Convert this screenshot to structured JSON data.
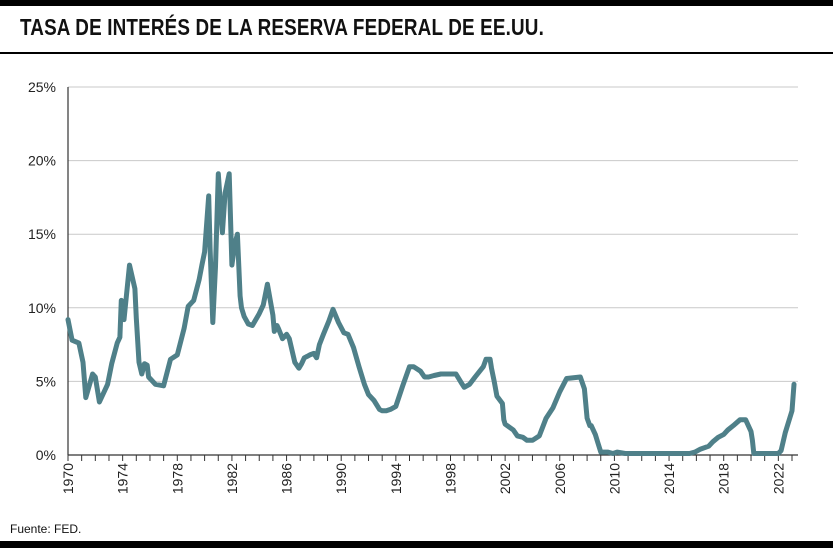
{
  "header": {
    "title": "TASA DE INTERÉS DE LA RESERVA FEDERAL DE EE.UU."
  },
  "footer": {
    "source": "Fuente: FED."
  },
  "chart_data": {
    "type": "line",
    "title": "TASA DE INTERÉS DE LA RESERVA FEDERAL DE EE.UU.",
    "xlabel": "",
    "ylabel": "",
    "xlim": [
      1970,
      2023.7
    ],
    "ylim": [
      0,
      25
    ],
    "y_ticks": [
      "0%",
      "5%",
      "10%",
      "15%",
      "20%",
      "25%"
    ],
    "y_tick_values": [
      0,
      5,
      10,
      15,
      20,
      25
    ],
    "x_ticks": [
      "1970",
      "1974",
      "1978",
      "1982",
      "1986",
      "1990",
      "1994",
      "1998",
      "2002",
      "2006",
      "2010",
      "2014",
      "2018",
      "2022"
    ],
    "x_tick_values": [
      1970,
      1974,
      1978,
      1982,
      1986,
      1990,
      1994,
      1998,
      2002,
      2006,
      2010,
      2014,
      2018,
      2022
    ],
    "grid": "horizontal",
    "line_color": "#4f8089",
    "series": [
      {
        "x": [
          1970.0,
          1970.3,
          1970.8,
          1971.1,
          1971.3,
          1971.8,
          1972.0,
          1972.3,
          1972.9,
          1973.2,
          1973.6,
          1973.8,
          1973.9,
          1974.1,
          1974.5,
          1974.9,
          1975.0,
          1975.2,
          1975.4,
          1975.6,
          1975.8,
          1975.9,
          1976.0,
          1976.4,
          1977.0,
          1977.5,
          1978.0,
          1978.5,
          1978.8,
          1979.2,
          1979.6,
          1979.8,
          1980.0,
          1980.3,
          1980.4,
          1980.6,
          1980.8,
          1981.0,
          1981.3,
          1981.5,
          1981.8,
          1982.0,
          1982.2,
          1982.4,
          1982.6,
          1982.7,
          1982.9,
          1983.2,
          1983.5,
          1984.0,
          1984.3,
          1984.6,
          1985.0,
          1985.1,
          1985.3,
          1985.4,
          1985.7,
          1986.0,
          1986.2,
          1986.6,
          1986.9,
          1987.1,
          1987.3,
          1987.5,
          1987.7,
          1988.0,
          1988.2,
          1988.4,
          1988.7,
          1989.1,
          1989.4,
          1989.8,
          1990.2,
          1990.5,
          1990.9,
          1991.3,
          1991.7,
          1992.0,
          1992.4,
          1992.8,
          1993.0,
          1993.3,
          1993.6,
          1994.0,
          1994.5,
          1995.0,
          1995.3,
          1995.8,
          1996.1,
          1996.4,
          1996.8,
          1997.3,
          1997.8,
          1998.4,
          1998.8,
          1999.0,
          1999.4,
          1999.8,
          2000.4,
          2000.6,
          2000.9,
          2001.0,
          2001.2,
          2001.4,
          2001.8,
          2001.9,
          2002.0,
          2002.6,
          2002.9,
          2003.3,
          2003.6,
          2004.0,
          2004.5,
          2005.0,
          2005.5,
          2006.0,
          2006.5,
          2007.5,
          2007.8,
          2008.0,
          2008.2,
          2008.3,
          2008.6,
          2008.8,
          2009.0,
          2009.5,
          2009.9,
          2010.2,
          2010.8,
          2011.5,
          2012.5,
          2013.5,
          2014.5,
          2015.5,
          2015.9,
          2016.3,
          2016.9,
          2017.2,
          2017.6,
          2018.0,
          2018.3,
          2018.7,
          2019.2,
          2019.6,
          2020.0,
          2020.1,
          2020.2,
          2021.0,
          2022.0,
          2022.2,
          2022.5,
          2023.0,
          2023.5
        ],
        "values": [
          9.2,
          7.8,
          7.6,
          6.3,
          3.9,
          5.5,
          5.3,
          3.6,
          4.8,
          6.2,
          7.6,
          8.0,
          10.5,
          9.2,
          12.9,
          11.3,
          9.3,
          6.3,
          5.5,
          6.2,
          6.1,
          5.3,
          5.2,
          4.8,
          4.7,
          6.5,
          6.8,
          8.6,
          10.1,
          10.5,
          11.9,
          12.9,
          13.8,
          17.6,
          14.0,
          9.0,
          12.8,
          19.1,
          15.1,
          17.8,
          19.1,
          12.9,
          14.3,
          15.0,
          10.8,
          10.0,
          9.4,
          8.9,
          8.8,
          9.6,
          10.2,
          11.6,
          9.5,
          8.4,
          8.8,
          8.6,
          7.9,
          8.2,
          7.9,
          6.3,
          5.9,
          6.2,
          6.6,
          6.7,
          6.8,
          6.9,
          6.6,
          7.5,
          8.2,
          9.1,
          9.9,
          9.0,
          8.3,
          8.2,
          7.3,
          6.0,
          4.8,
          4.1,
          3.7,
          3.1,
          3.0,
          3.0,
          3.1,
          3.3,
          4.7,
          6.0,
          6.0,
          5.7,
          5.3,
          5.3,
          5.4,
          5.5,
          5.5,
          5.5,
          4.9,
          4.6,
          4.8,
          5.3,
          6.0,
          6.5,
          6.5,
          5.9,
          5.0,
          4.0,
          3.5,
          2.4,
          2.1,
          1.7,
          1.3,
          1.2,
          1.0,
          1.0,
          1.3,
          2.5,
          3.2,
          4.3,
          5.2,
          5.3,
          4.5,
          2.5,
          2.0,
          2.0,
          1.4,
          0.8,
          0.2,
          0.2,
          0.1,
          0.2,
          0.1,
          0.1,
          0.1,
          0.1,
          0.1,
          0.1,
          0.2,
          0.4,
          0.6,
          0.9,
          1.2,
          1.4,
          1.7,
          2.0,
          2.4,
          2.4,
          1.6,
          1.0,
          0.1,
          0.1,
          0.1,
          0.3,
          1.5,
          3.0,
          4.8
        ]
      }
    ]
  }
}
